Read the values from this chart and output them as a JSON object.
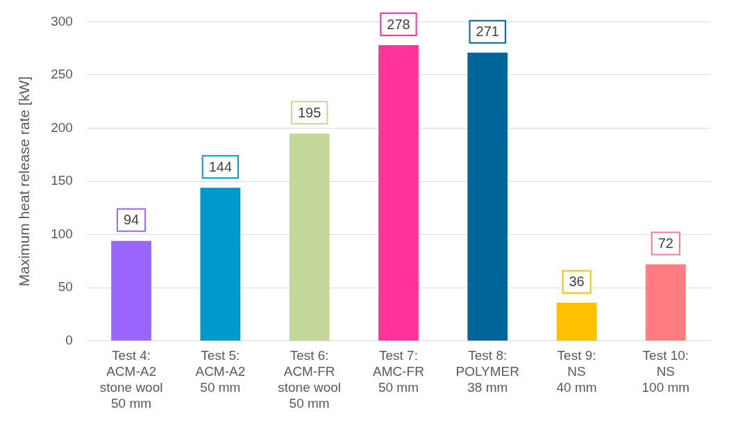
{
  "chart_data": {
    "type": "bar",
    "ylabel": "Maximum heat release rate [kW]",
    "categories": [
      "Test 4:\nACM-A2\nstone wool\n50 mm",
      "Test 5:\nACM-A2\n50 mm",
      "Test 6:\nACM-FR\nstone wool\n50 mm",
      "Test 7:\nAMC-FR\n50 mm",
      "Test 8:\nPOLYMER\n38 mm",
      "Test 9:\nNS\n40 mm",
      "Test 10:\nNS\n100 mm"
    ],
    "values": [
      94,
      144,
      195,
      278,
      271,
      36,
      72
    ],
    "colors": [
      "#9966ff",
      "#0099cc",
      "#c4d79b",
      "#ff3399",
      "#006699",
      "#ffc000",
      "#ff7c80"
    ],
    "ylim": [
      0,
      300
    ],
    "yticks": [
      0,
      50,
      100,
      150,
      200,
      250,
      300
    ],
    "grid": "y",
    "legend": false,
    "data_labels": true
  }
}
